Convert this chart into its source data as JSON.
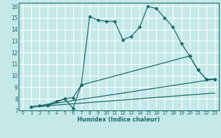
{
  "title": "",
  "xlabel": "Humidex (Indice chaleur)",
  "bg_color": "#c5e8e8",
  "grid_color": "#ffffff",
  "line_color": "#1a6b6b",
  "xlim": [
    -0.5,
    23.5
  ],
  "ylim": [
    7,
    16.3
  ],
  "xticks": [
    0,
    1,
    2,
    3,
    4,
    5,
    6,
    7,
    8,
    9,
    10,
    11,
    12,
    13,
    14,
    15,
    16,
    17,
    18,
    19,
    20,
    21,
    22,
    23
  ],
  "yticks": [
    7,
    8,
    9,
    10,
    11,
    12,
    13,
    14,
    15,
    16
  ],
  "line1_x": [
    1,
    2,
    3,
    4,
    5,
    6,
    7,
    8,
    9,
    10,
    11,
    12,
    13,
    14,
    15,
    16,
    17,
    18,
    19,
    20,
    21,
    22,
    23
  ],
  "line1_y": [
    7.3,
    7.4,
    7.5,
    7.8,
    8.0,
    7.2,
    9.2,
    15.1,
    14.8,
    14.7,
    14.7,
    13.1,
    13.4,
    14.2,
    16.0,
    15.8,
    15.0,
    14.2,
    12.8,
    11.7,
    10.5,
    9.7,
    9.7
  ],
  "line2_x": [
    1,
    3,
    5,
    6,
    7,
    20,
    21,
    22,
    23
  ],
  "line2_y": [
    7.3,
    7.4,
    8.0,
    8.1,
    9.2,
    11.7,
    10.5,
    9.7,
    9.7
  ],
  "line3_x": [
    1,
    23
  ],
  "line3_y": [
    7.3,
    9.7
  ],
  "line4_x": [
    1,
    23
  ],
  "line4_y": [
    7.3,
    8.5
  ]
}
